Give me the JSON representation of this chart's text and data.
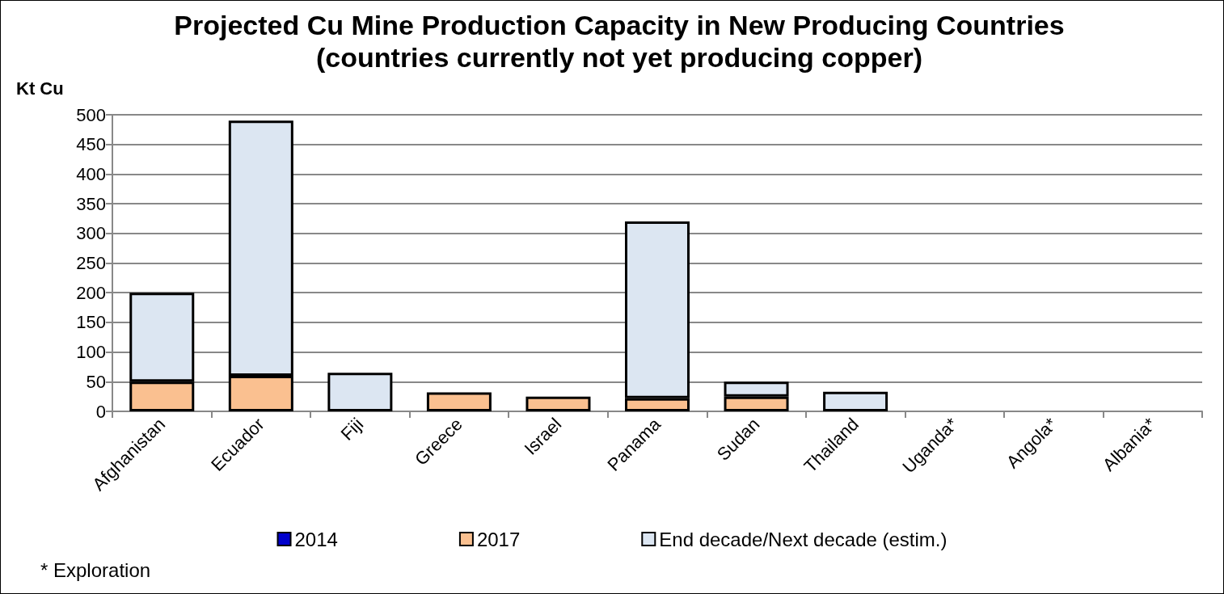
{
  "chart_data": {
    "type": "bar",
    "title": "Projected Cu Mine Production Capacity in New Producing Countries",
    "subtitle": "(countries currently not yet producing copper)",
    "ylabel": "Kt Cu",
    "annotations": [
      "* Exploration"
    ],
    "categories": [
      "Afghanistan",
      "Ecuador",
      "Fiji",
      "Greece",
      "Israel",
      "Panama",
      "Sudan",
      "Thailand",
      "Uganda*",
      "Angola*",
      "Albania*"
    ],
    "stacked": true,
    "series": [
      {
        "name": "2014",
        "color": "#0000cc",
        "values": [
          null,
          null,
          null,
          null,
          null,
          null,
          null,
          null,
          null,
          null,
          null
        ]
      },
      {
        "name": "2017",
        "color": "#fac090",
        "values": [
          50,
          60,
          null,
          32,
          25,
          22,
          25,
          null,
          null,
          null,
          null
        ]
      },
      {
        "name": "End decade/Next decade (estim.)",
        "color": "#dce6f2",
        "values": [
          150,
          430,
          65,
          null,
          null,
          298,
          25,
          33,
          null,
          null,
          null
        ]
      }
    ],
    "ylim": [
      0,
      500
    ],
    "yticks": [
      0,
      50,
      100,
      150,
      200,
      250,
      300,
      350,
      400,
      450,
      500
    ],
    "grid": "y",
    "legend": "bottom"
  }
}
